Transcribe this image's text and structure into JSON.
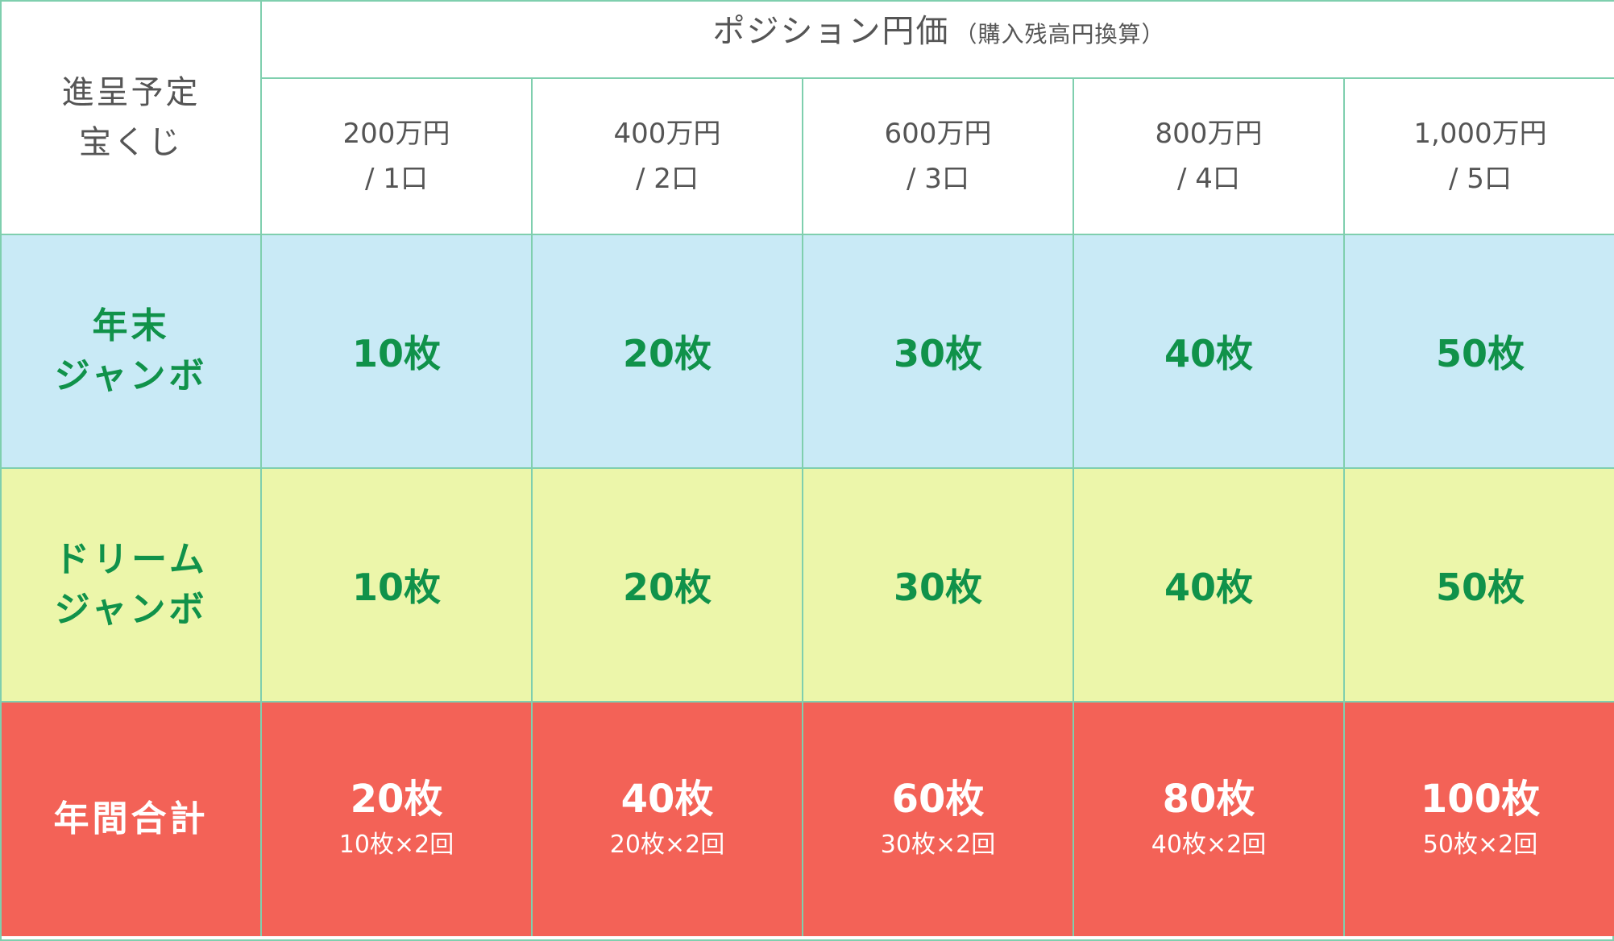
{
  "header": {
    "corner_line1": "進呈予定",
    "corner_line2": "宝くじ",
    "span_title": "ポジション円価",
    "span_subtitle": "（購入残高円換算）",
    "columns": [
      {
        "amount": "200万円",
        "units": "/ 1口"
      },
      {
        "amount": "400万円",
        "units": "/ 2口"
      },
      {
        "amount": "600万円",
        "units": "/ 3口"
      },
      {
        "amount": "800万円",
        "units": "/ 4口"
      },
      {
        "amount": "1,000万円",
        "units": "/ 5口"
      }
    ]
  },
  "rows": [
    {
      "label_line1": "年末",
      "label_line2": "ジャンボ",
      "values": [
        "10枚",
        "20枚",
        "30枚",
        "40枚",
        "50枚"
      ]
    },
    {
      "label_line1": "ドリーム",
      "label_line2": "ジャンボ",
      "values": [
        "10枚",
        "20枚",
        "30枚",
        "40枚",
        "50枚"
      ]
    }
  ],
  "total": {
    "label": "年間合計",
    "values": [
      "20枚",
      "40枚",
      "60枚",
      "80枚",
      "100枚"
    ],
    "notes": [
      "10枚×2回",
      "20枚×2回",
      "30枚×2回",
      "40枚×2回",
      "50枚×2回"
    ]
  },
  "colors": {
    "border": "#7fcfae",
    "header_text": "#555555",
    "row_nenmatsu_bg": "#c9eaf6",
    "row_dream_bg": "#ecf6aa",
    "row_total_bg": "#f36257",
    "green_text": "#10924a",
    "total_text": "#ffffff"
  }
}
